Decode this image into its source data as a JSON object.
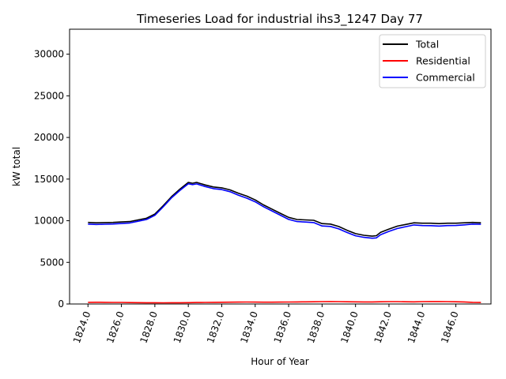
{
  "chart_data": {
    "type": "line",
    "title": "Timeseries Load for industrial ihs3_1247  Day 77",
    "xlabel": "Hour of Year",
    "ylabel": "kW total",
    "xlim": [
      1822.9,
      1848.1
    ],
    "ylim": [
      0,
      33000
    ],
    "xticks": [
      1824,
      1826,
      1828,
      1830,
      1832,
      1834,
      1836,
      1838,
      1840,
      1842,
      1844,
      1846
    ],
    "xtick_labels": [
      "1824.0",
      "1826.0",
      "1828.0",
      "1830.0",
      "1832.0",
      "1834.0",
      "1836.0",
      "1838.0",
      "1840.0",
      "1842.0",
      "1844.0",
      "1846.0"
    ],
    "yticks": [
      0,
      5000,
      10000,
      15000,
      20000,
      25000,
      30000
    ],
    "ytick_labels": [
      "0",
      "5000",
      "10000",
      "15000",
      "20000",
      "25000",
      "30000"
    ],
    "grid": false,
    "legend_position": "top-right",
    "x": [
      1824.0,
      1824.5,
      1825.0,
      1825.5,
      1826.0,
      1826.5,
      1827.0,
      1827.5,
      1828.0,
      1828.5,
      1829.0,
      1829.5,
      1830.0,
      1830.25,
      1830.5,
      1831.0,
      1831.5,
      1832.0,
      1832.5,
      1833.0,
      1833.5,
      1834.0,
      1834.5,
      1835.0,
      1835.5,
      1836.0,
      1836.5,
      1837.0,
      1837.5,
      1838.0,
      1838.5,
      1839.0,
      1839.5,
      1840.0,
      1840.5,
      1841.0,
      1841.25,
      1841.5,
      1842.0,
      1842.5,
      1843.0,
      1843.5,
      1844.0,
      1844.5,
      1845.0,
      1845.5,
      1846.0,
      1846.5,
      1847.0,
      1847.5
    ],
    "series": [
      {
        "name": "Total",
        "color": "#000000",
        "values": [
          9800,
          9750,
          9780,
          9800,
          9850,
          9900,
          10100,
          10300,
          10800,
          11800,
          12900,
          13800,
          14600,
          14500,
          14600,
          14300,
          14050,
          13950,
          13700,
          13300,
          12950,
          12500,
          11900,
          11400,
          10900,
          10400,
          10150,
          10100,
          10050,
          9650,
          9600,
          9300,
          8850,
          8450,
          8250,
          8150,
          8200,
          8600,
          9000,
          9350,
          9550,
          9750,
          9700,
          9700,
          9650,
          9700,
          9700,
          9750,
          9800,
          9750
        ]
      },
      {
        "name": "Residential",
        "color": "#ff0000",
        "values": [
          200,
          210,
          200,
          190,
          190,
          170,
          160,
          150,
          150,
          140,
          150,
          150,
          160,
          170,
          180,
          190,
          200,
          210,
          220,
          230,
          240,
          230,
          220,
          220,
          230,
          240,
          250,
          260,
          270,
          280,
          290,
          280,
          270,
          260,
          250,
          250,
          260,
          270,
          280,
          280,
          270,
          260,
          280,
          290,
          290,
          280,
          270,
          250,
          200,
          180
        ]
      },
      {
        "name": "Commercial",
        "color": "#0000ff",
        "values": [
          9600,
          9550,
          9580,
          9610,
          9660,
          9730,
          9940,
          10150,
          10650,
          11660,
          12750,
          13650,
          14440,
          14330,
          14420,
          14110,
          13850,
          13740,
          13480,
          13070,
          12710,
          12270,
          11680,
          11180,
          10670,
          10160,
          9900,
          9840,
          9780,
          9370,
          9310,
          9020,
          8580,
          8190,
          8000,
          7900,
          7940,
          8330,
          8720,
          9070,
          9280,
          9490,
          9420,
          9410,
          9360,
          9420,
          9430,
          9500,
          9600,
          9570
        ]
      }
    ]
  }
}
